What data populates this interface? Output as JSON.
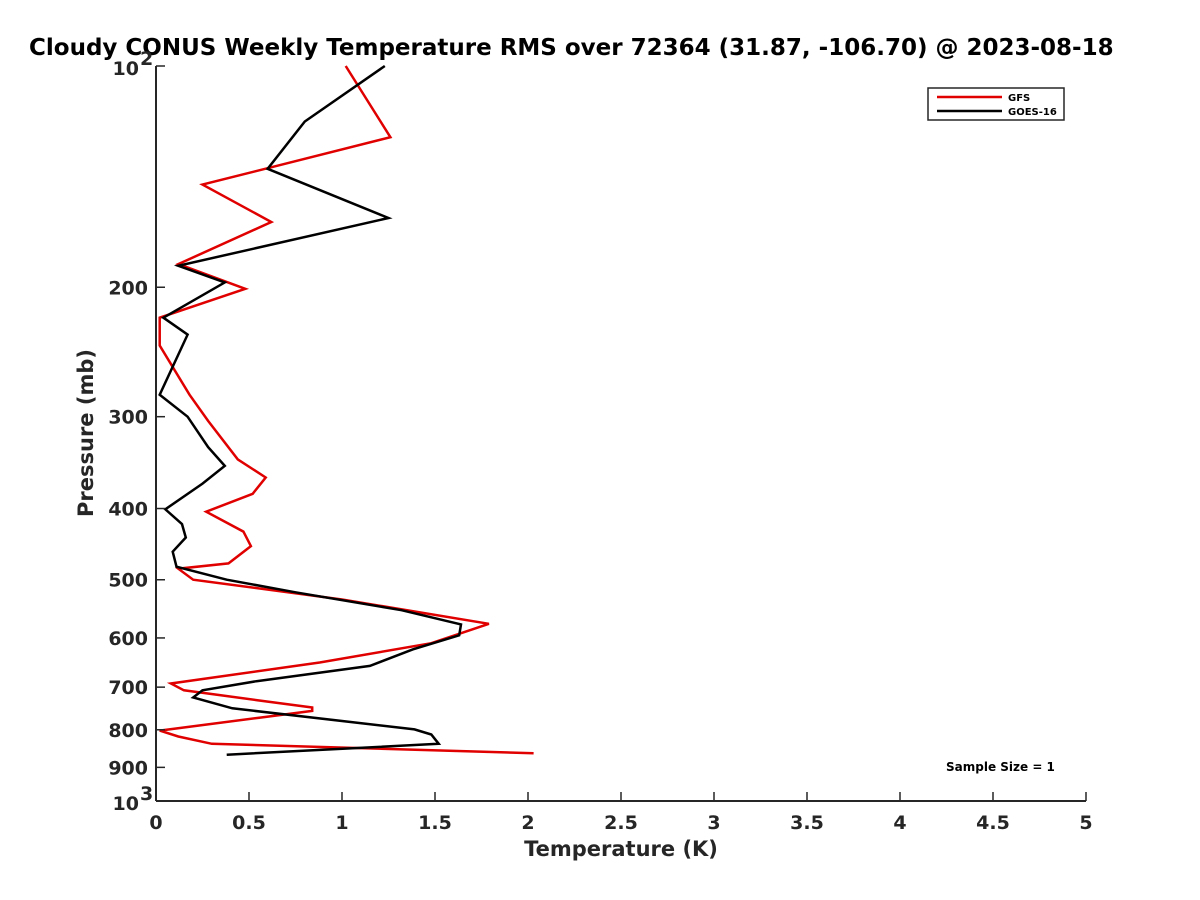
{
  "chart_data": {
    "type": "line",
    "title": "Cloudy CONUS Weekly Temperature RMS over 72364 (31.87, -106.70) @ 2023-08-18",
    "xlabel": "Temperature (K)",
    "ylabel": "Pressure (mb)",
    "xlim": [
      0,
      5
    ],
    "ylim": [
      100,
      1000
    ],
    "y_scale": "log",
    "y_reversed": true,
    "x_ticks": [
      "0",
      "0.5",
      "1",
      "1.5",
      "2",
      "2.5",
      "3",
      "3.5",
      "4",
      "4.5",
      "5"
    ],
    "x_tick_values": [
      0,
      0.5,
      1,
      1.5,
      2,
      2.5,
      3,
      3.5,
      4,
      4.5,
      5
    ],
    "y_ticks": [
      {
        "value": 100,
        "base": "10",
        "exp": "2"
      },
      {
        "value": 200,
        "label": "200"
      },
      {
        "value": 300,
        "label": "300"
      },
      {
        "value": 400,
        "label": "400"
      },
      {
        "value": 500,
        "label": "500"
      },
      {
        "value": 600,
        "label": "600"
      },
      {
        "value": 700,
        "label": "700"
      },
      {
        "value": 800,
        "label": "800"
      },
      {
        "value": 900,
        "label": "900"
      },
      {
        "value": 1000,
        "base": "10",
        "exp": "3"
      }
    ],
    "legend_position": "top-right",
    "grid": false,
    "series": [
      {
        "name": "GFS",
        "color": "#e00000",
        "x": [
          1.02,
          1.26,
          0.25,
          0.62,
          0.12,
          0.48,
          0.02,
          0.02,
          0.18,
          0.28,
          0.44,
          0.59,
          0.52,
          0.27,
          0.47,
          0.51,
          0.39,
          0.12,
          0.2,
          1.0,
          1.79,
          1.48,
          0.88,
          0.08,
          0.15,
          0.54,
          0.84,
          0.84,
          0.56,
          0.02,
          0.12,
          0.3,
          2.03
        ],
        "y": [
          100,
          125,
          145,
          163,
          186,
          201,
          220,
          240,
          280,
          304,
          343,
          363,
          382,
          404,
          430,
          450,
          475,
          483,
          500,
          532,
          574,
          610,
          648,
          692,
          707,
          729,
          746,
          754,
          770,
          802,
          817,
          836,
          861
        ]
      },
      {
        "name": "GOES-16",
        "color": "#000000",
        "x": [
          1.23,
          0.8,
          0.6,
          1.25,
          0.12,
          0.37,
          0.04,
          0.17,
          0.02,
          0.17,
          0.28,
          0.37,
          0.25,
          0.05,
          0.14,
          0.16,
          0.09,
          0.11,
          0.38,
          0.75,
          1.32,
          1.64,
          1.63,
          1.38,
          1.15,
          0.54,
          0.25,
          0.2,
          0.41,
          1.39,
          1.48,
          1.52,
          0.38
        ],
        "y": [
          100,
          119,
          138,
          161,
          187,
          197,
          220,
          232,
          280,
          300,
          330,
          350,
          370,
          401,
          420,
          438,
          458,
          480,
          500,
          520,
          550,
          575,
          595,
          622,
          655,
          687,
          707,
          723,
          748,
          799,
          812,
          836,
          865
        ]
      }
    ],
    "annotation": "Sample Size = 1"
  }
}
